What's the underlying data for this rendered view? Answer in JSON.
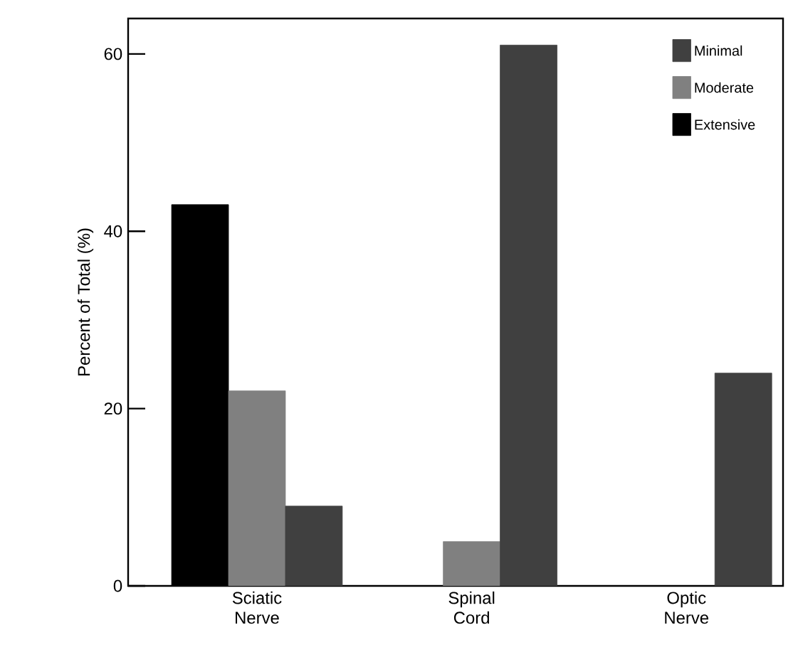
{
  "chart_data": {
    "type": "bar",
    "ylabel": "Percent of Total (%)",
    "categories": [
      "Sciatic Nerve",
      "Spinal Cord",
      "Optic Nerve"
    ],
    "series": [
      {
        "name": "Extensive",
        "color": "#000000",
        "values": [
          43,
          null,
          null
        ]
      },
      {
        "name": "Moderate",
        "color": "#808080",
        "values": [
          22,
          5,
          null
        ]
      },
      {
        "name": "Minimal",
        "color": "#404040",
        "values": [
          9,
          61,
          24
        ]
      }
    ],
    "ylim": [
      0,
      64
    ],
    "yticks": [
      0,
      20,
      40,
      60
    ],
    "legend": "top right",
    "grid": false
  }
}
